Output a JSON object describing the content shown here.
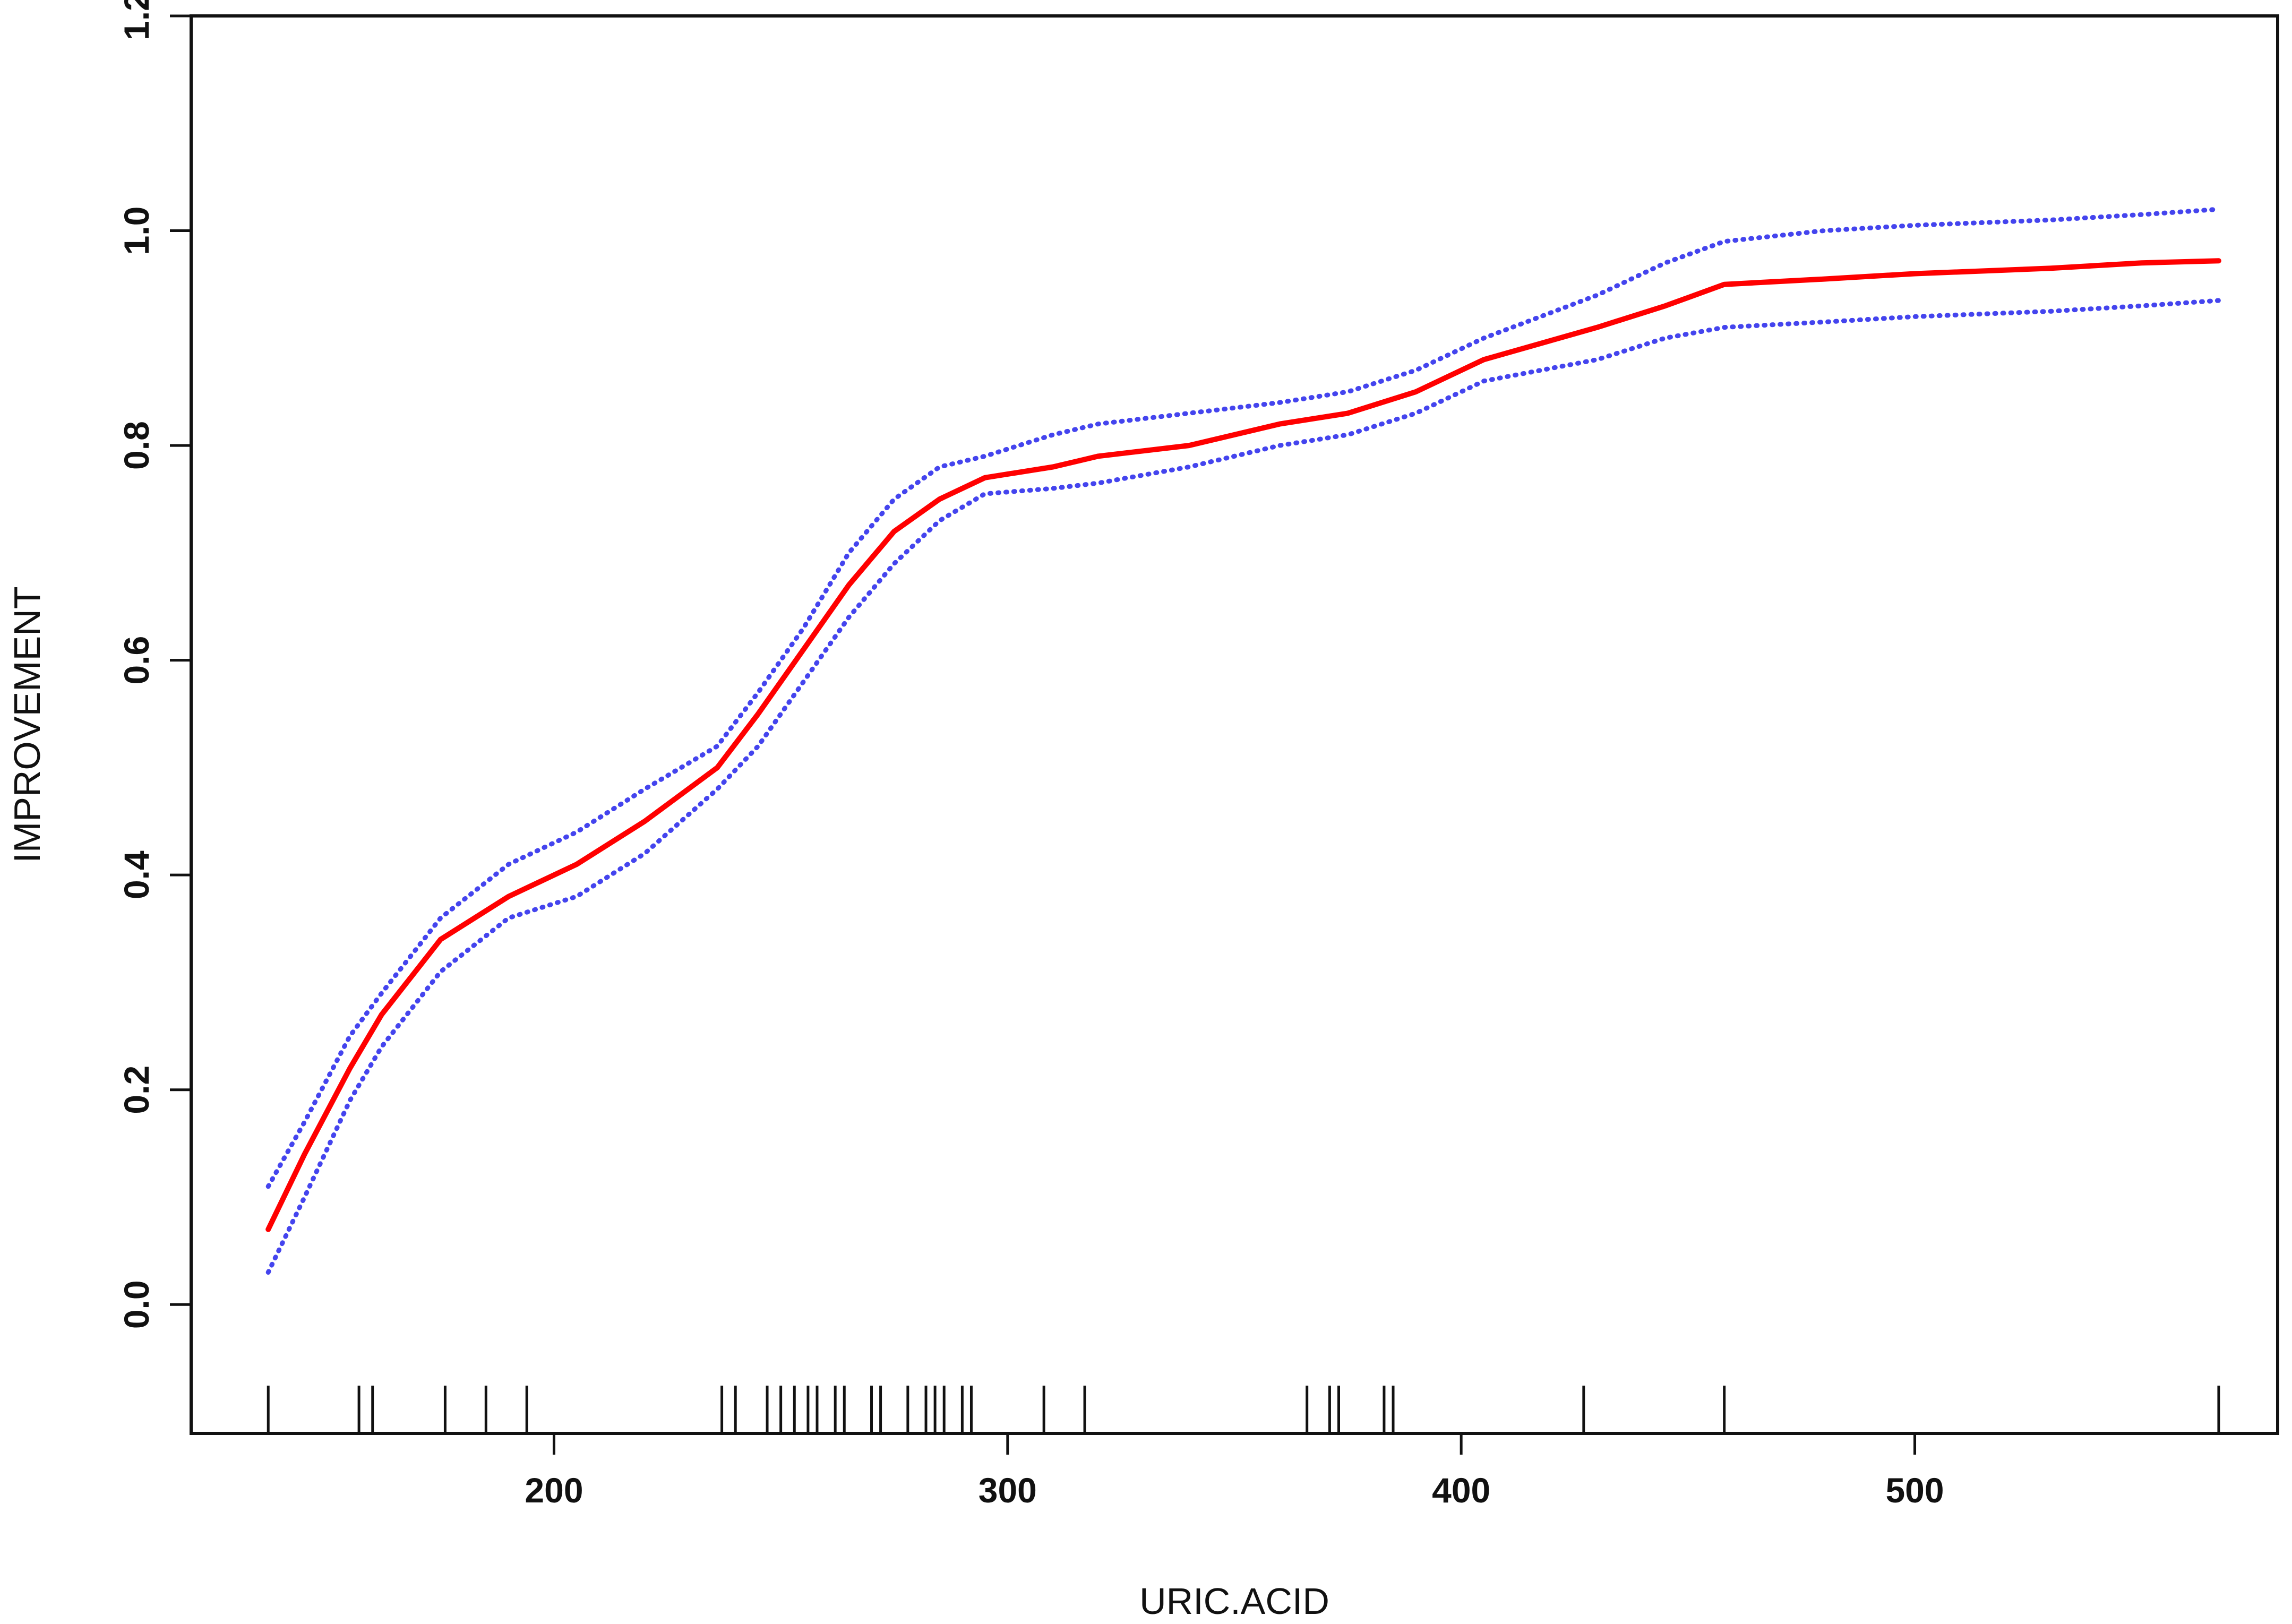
{
  "chart_data": {
    "type": "line",
    "xlabel": "URIC.ACID",
    "ylabel": "IMPROVEMENT",
    "xlim": [
      120,
      580
    ],
    "ylim": [
      -0.12,
      1.2
    ],
    "xticks": [
      200,
      300,
      400,
      500
    ],
    "xtick_labels": [
      "200",
      "300",
      "400",
      "500"
    ],
    "yticks": [
      0.0,
      0.2,
      0.4,
      0.6,
      0.8,
      1.0,
      1.2
    ],
    "ytick_labels": [
      "0.0",
      "0.2",
      "0.4",
      "0.6",
      "0.8",
      "1.0",
      "1.2"
    ],
    "grid": false,
    "legend": "none",
    "series": [
      {
        "role": "fit",
        "color": "#ff0000",
        "style": "solid",
        "points": [
          [
            137,
            0.07
          ],
          [
            145,
            0.14
          ],
          [
            155,
            0.22
          ],
          [
            162,
            0.27
          ],
          [
            175,
            0.34
          ],
          [
            190,
            0.38
          ],
          [
            205,
            0.41
          ],
          [
            220,
            0.45
          ],
          [
            236,
            0.5
          ],
          [
            245,
            0.55
          ],
          [
            255,
            0.61
          ],
          [
            265,
            0.67
          ],
          [
            275,
            0.72
          ],
          [
            285,
            0.75
          ],
          [
            295,
            0.77
          ],
          [
            310,
            0.78
          ],
          [
            320,
            0.79
          ],
          [
            340,
            0.8
          ],
          [
            360,
            0.82
          ],
          [
            375,
            0.83
          ],
          [
            390,
            0.85
          ],
          [
            405,
            0.88
          ],
          [
            430,
            0.91
          ],
          [
            445,
            0.93
          ],
          [
            458,
            0.95
          ],
          [
            480,
            0.955
          ],
          [
            500,
            0.96
          ],
          [
            530,
            0.965
          ],
          [
            550,
            0.97
          ],
          [
            567,
            0.972
          ]
        ]
      },
      {
        "role": "upper-ci",
        "color": "#4444ee",
        "style": "dotted",
        "points": [
          [
            137,
            0.11
          ],
          [
            145,
            0.17
          ],
          [
            155,
            0.25
          ],
          [
            162,
            0.29
          ],
          [
            175,
            0.36
          ],
          [
            190,
            0.41
          ],
          [
            205,
            0.44
          ],
          [
            220,
            0.48
          ],
          [
            236,
            0.52
          ],
          [
            245,
            0.57
          ],
          [
            255,
            0.63
          ],
          [
            265,
            0.7
          ],
          [
            275,
            0.75
          ],
          [
            285,
            0.78
          ],
          [
            295,
            0.79
          ],
          [
            310,
            0.81
          ],
          [
            320,
            0.82
          ],
          [
            340,
            0.83
          ],
          [
            360,
            0.84
          ],
          [
            375,
            0.85
          ],
          [
            390,
            0.87
          ],
          [
            405,
            0.9
          ],
          [
            430,
            0.94
          ],
          [
            445,
            0.97
          ],
          [
            458,
            0.99
          ],
          [
            480,
            1.0
          ],
          [
            500,
            1.005
          ],
          [
            530,
            1.01
          ],
          [
            550,
            1.015
          ],
          [
            567,
            1.02
          ]
        ]
      },
      {
        "role": "lower-ci",
        "color": "#4444ee",
        "style": "dotted",
        "points": [
          [
            137,
            0.03
          ],
          [
            145,
            0.1
          ],
          [
            155,
            0.19
          ],
          [
            162,
            0.24
          ],
          [
            175,
            0.31
          ],
          [
            190,
            0.36
          ],
          [
            205,
            0.38
          ],
          [
            220,
            0.42
          ],
          [
            236,
            0.48
          ],
          [
            245,
            0.52
          ],
          [
            255,
            0.58
          ],
          [
            265,
            0.64
          ],
          [
            275,
            0.69
          ],
          [
            285,
            0.73
          ],
          [
            295,
            0.755
          ],
          [
            310,
            0.76
          ],
          [
            320,
            0.765
          ],
          [
            340,
            0.78
          ],
          [
            360,
            0.8
          ],
          [
            375,
            0.81
          ],
          [
            390,
            0.83
          ],
          [
            405,
            0.86
          ],
          [
            430,
            0.88
          ],
          [
            445,
            0.9
          ],
          [
            458,
            0.91
          ],
          [
            480,
            0.915
          ],
          [
            500,
            0.92
          ],
          [
            530,
            0.925
          ],
          [
            550,
            0.93
          ],
          [
            567,
            0.935
          ]
        ]
      }
    ],
    "rug_x": [
      137,
      157,
      160,
      176,
      185,
      194,
      237,
      240,
      247,
      250,
      253,
      256,
      258,
      262,
      264,
      270,
      272,
      278,
      282,
      284,
      286,
      290,
      292,
      308,
      317,
      366,
      371,
      373,
      383,
      385,
      427,
      458,
      567
    ]
  }
}
